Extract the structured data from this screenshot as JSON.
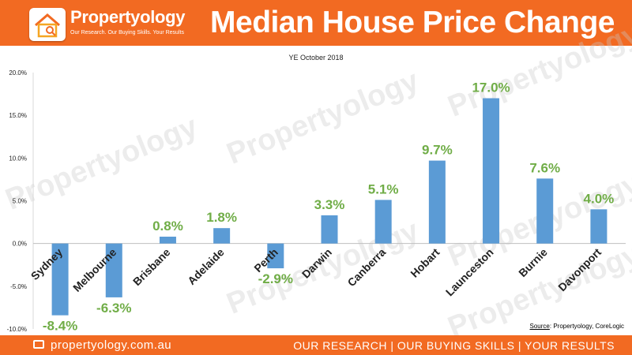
{
  "brand": {
    "name": "Propertyology",
    "tagline": "Our Research. Our Buying Skills. Your Results",
    "logo_icon": "house-icon",
    "accent_color": "#f26a22"
  },
  "header": {
    "title": "Median House Price Change"
  },
  "watermark": "Propertyology",
  "footer": {
    "website": "propertyology.com.au",
    "slogan": "OUR RESEARCH | OUR BUYING SKILLS | YOUR RESULTS",
    "website_icon": "monitor-icon"
  },
  "source": {
    "label": "Source",
    "text": ": Propertyology, CoreLogic"
  },
  "chart_data": {
    "type": "bar",
    "title": "",
    "subtitle": "YE October 2018",
    "xlabel": "",
    "ylabel": "",
    "categories": [
      "Sydney",
      "Melbourne",
      "Brisbane",
      "Adelaide",
      "Perth",
      "Darwin",
      "Canberra",
      "Hobart",
      "Launceston",
      "Burnie",
      "Davonport"
    ],
    "values": [
      -8.4,
      -6.3,
      0.8,
      1.8,
      -2.9,
      3.3,
      5.1,
      9.7,
      17.0,
      7.6,
      4.0
    ],
    "data_labels": [
      "-8.4%",
      "-6.3%",
      "0.8%",
      "1.8%",
      "-2.9%",
      "3.3%",
      "5.1%",
      "9.7%",
      "17.0%",
      "7.6%",
      "4.0%"
    ],
    "ylim": [
      -10,
      20
    ],
    "yticks": [
      -10,
      -5,
      0,
      5,
      10,
      15,
      20
    ],
    "ytick_labels": [
      "-10.0%",
      "-5.0%",
      "0.0%",
      "5.0%",
      "10.0%",
      "15.0%",
      "20.0%"
    ],
    "grid": false,
    "legend": "none",
    "bar_color": "#5b9bd5",
    "label_color": "#70ad47"
  }
}
